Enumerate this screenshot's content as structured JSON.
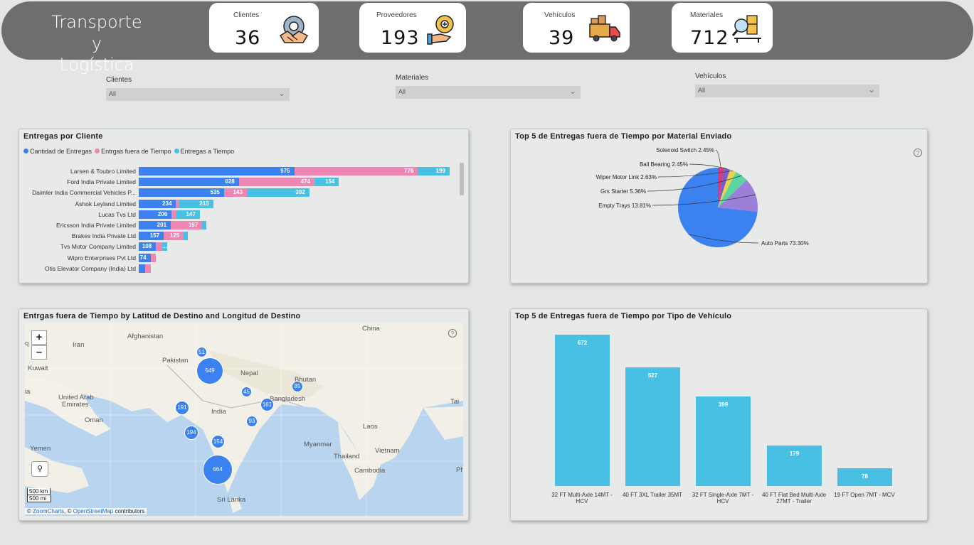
{
  "header": {
    "title_line1": "Transporte y",
    "title_line2": "Logística",
    "kpis": [
      {
        "label": "Clientes",
        "value": "36",
        "icon": "handshake-gear-icon"
      },
      {
        "label": "Proveedores",
        "value": "193",
        "icon": "hand-gear-icon"
      },
      {
        "label": "Vehículos",
        "value": "39",
        "icon": "truck-icon"
      },
      {
        "label": "Materiales",
        "value": "712",
        "icon": "magnifier-boxes-icon"
      }
    ]
  },
  "slicers": [
    {
      "label": "Clientes",
      "value": "All"
    },
    {
      "label": "Materiales",
      "value": "All"
    },
    {
      "label": "Vehículos",
      "value": "All"
    }
  ],
  "entregas_chart": {
    "title": "Entregas por Cliente",
    "legend": [
      "Cantidad de Entregas",
      "Entrgas fuera de Tiempo",
      "Entregas a Tiempo"
    ]
  },
  "pie_chart": {
    "title": "Top 5 de Entregas fuera de Tiempo por Material Enviado",
    "labels": [
      "Solenoid Switch 2.45%",
      "Ball Bearing 2.45%",
      "Wiper Motor Link 2.63%",
      "Grs Starter 5.36%",
      "Empty Trays 13.81%",
      "Auto Parts 73.30%"
    ]
  },
  "map_chart": {
    "title": "Entrgas fuera de Tiempo by Latitud de Destino and Longitud de Destino",
    "zoom_in": "+",
    "zoom_out": "–",
    "countries": [
      "Afghanistan",
      "Iran",
      "Pakistan",
      "Kuwait",
      "Nepal",
      "Bhutan",
      "China",
      "United Arab",
      "Emirates",
      "India",
      "Bangladesh",
      "Oman",
      "Laos",
      "Yemen",
      "Myanmar",
      "Thailand",
      "Vietnam",
      "Cambodia",
      "Sri Lanka",
      "Tai",
      "Ph",
      "ia",
      "q"
    ],
    "bubbles": [
      "51",
      "549",
      "45",
      "85",
      "161",
      "191",
      "93",
      "194",
      "154",
      "664"
    ],
    "scale_km": "500 km",
    "scale_mi": "500 mi",
    "attribution_prefix": "©",
    "attribution_zoom": "ZoomCharts",
    "attribution_mid": ", ©",
    "attribution_osm": "OpenStreetMap",
    "attribution_suffix": "contributors"
  },
  "vehiculo_chart": {
    "title": "Top 5 de Entregas fuera de Tiempo por Tipo de Vehículo"
  },
  "chart_data": [
    {
      "type": "bar",
      "title": "Entregas por Cliente",
      "orientation": "horizontal",
      "stacked": true,
      "categories": [
        "Larsen & Toubro Limited",
        "Ford India Private Limited",
        "Daimler India Commercial Vehicles P...",
        "Ashok Leyland Limited",
        "Lucas Tvs Ltd",
        "Ericsson India Private Limited",
        "Brakes India Private Ltd",
        "Tvs Motor Company Limited",
        "Wipro Enterprises Pvt Ltd",
        "Otis Elevator Company (India) Ltd"
      ],
      "series": [
        {
          "name": "Cantidad de Entregas",
          "color": "#3b82f0",
          "values": [
            975,
            628,
            535,
            234,
            206,
            201,
            157,
            108,
            74,
            40
          ],
          "labels": [
            "975",
            "628",
            "535",
            "234",
            "206",
            "201",
            "157",
            "108",
            "74",
            ""
          ]
        },
        {
          "name": "Entrgas fuera de Tiempo",
          "color": "#ee86b4",
          "values": [
            776,
            474,
            143,
            20,
            30,
            197,
            125,
            40,
            35,
            35
          ],
          "labels": [
            "776",
            "474",
            "143",
            "",
            "",
            "197",
            "125",
            "",
            "",
            ""
          ]
        },
        {
          "name": "Entregas a Tiempo",
          "color": "#48c0e4",
          "values": [
            199,
            154,
            392,
            213,
            147,
            10,
            20,
            30,
            0,
            0
          ],
          "labels": [
            "199",
            "154",
            "392",
            "213",
            "147",
            "",
            "",
            "...",
            "",
            ""
          ]
        }
      ]
    },
    {
      "type": "pie",
      "title": "Top 5 de Entregas fuera de Tiempo por Material Enviado",
      "categories": [
        "Auto Parts",
        "Empty Trays",
        "Grs Starter",
        "Wiper Motor Link",
        "Ball Bearing",
        "Solenoid Switch"
      ],
      "values": [
        73.3,
        13.81,
        5.36,
        2.63,
        2.45,
        2.45
      ],
      "colors": [
        "#3b82f0",
        "#9b7fd9",
        "#5cd6a0",
        "#e8d44d",
        "#7b5cc9",
        "#d63a7a"
      ]
    },
    {
      "type": "bar",
      "title": "Top 5 de Entregas fuera de Tiempo por Tipo de Vehículo",
      "categories": [
        "32 FT Multi-Axle 14MT - HCV",
        "40 FT 3XL Trailer 35MT",
        "32 FT Single-Axle 7MT - HCV",
        "40 FT Flat Bed Multi-Axle 27MT - Trailer",
        "19 FT Open 7MT - MCV"
      ],
      "values": [
        672,
        527,
        399,
        179,
        78
      ],
      "color": "#48c0e4"
    }
  ]
}
